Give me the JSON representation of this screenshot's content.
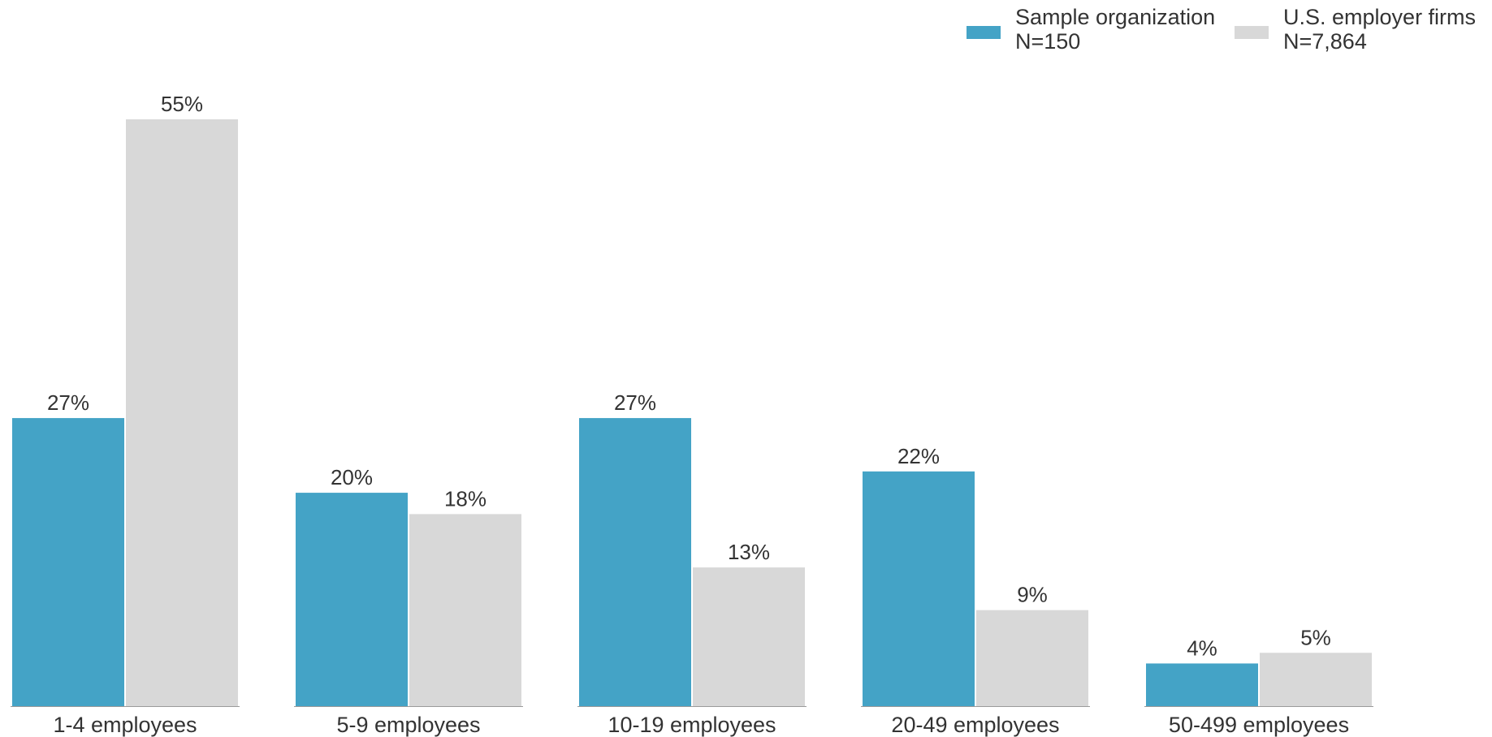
{
  "chart_data": {
    "type": "bar",
    "categories": [
      "1-4 employees",
      "5-9 employees",
      "10-19 employees",
      "20-49 employees",
      "50-499 employees"
    ],
    "series": [
      {
        "name": "Sample organization",
        "subtitle": "N=150",
        "color": "#44a3c6",
        "values": [
          27,
          20,
          27,
          22,
          4
        ],
        "labels": [
          "27%",
          "20%",
          "27%",
          "22%",
          "4%"
        ]
      },
      {
        "name": "U.S. employer firms",
        "subtitle": "N=7,864",
        "color": "#d8d8d8",
        "values": [
          55,
          18,
          13,
          9,
          5
        ],
        "labels": [
          "55%",
          "18%",
          "13%",
          "9%",
          "5%"
        ]
      }
    ],
    "unit": "%",
    "ylim": [
      0,
      55
    ],
    "grid": false,
    "legend_position": "top-right",
    "axis_line_color": "#9a9a9a"
  }
}
